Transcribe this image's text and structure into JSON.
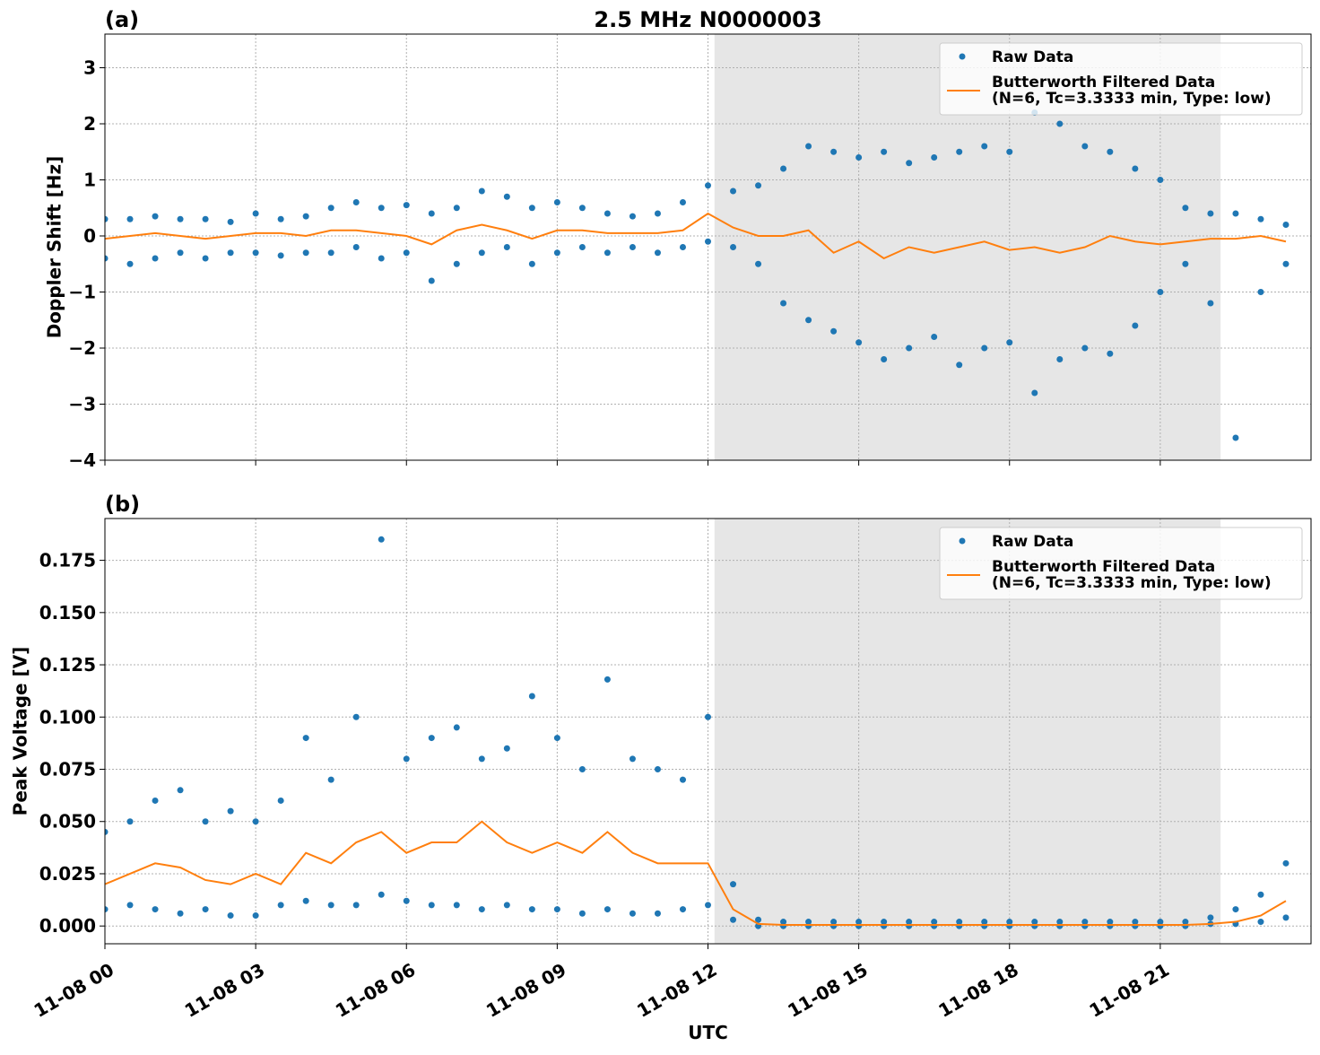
{
  "chart_data": [
    {
      "type": "line",
      "title": "2.5 MHz N0000003",
      "panel": "(a)",
      "ylabel": "Doppler Shift [Hz]",
      "xlim": [
        0,
        24
      ],
      "xticks": [
        0,
        3,
        6,
        9,
        12,
        15,
        18,
        21
      ],
      "ylim": [
        -4,
        3.6
      ],
      "yticks": [
        {
          "value": -4,
          "label": "−4"
        },
        {
          "value": -3,
          "label": "−3"
        },
        {
          "value": -2,
          "label": "−2"
        },
        {
          "value": -1,
          "label": "−1"
        },
        0,
        1,
        2,
        3
      ],
      "grid": true,
      "shade": [
        12.13,
        22.2
      ],
      "legend": "upper right",
      "series": [
        {
          "name": "Raw Data",
          "type": "scatter",
          "color": "#1f77b4",
          "x": [
            0,
            0,
            0.5,
            0.5,
            1,
            1,
            1.5,
            1.5,
            2,
            2,
            2.5,
            2.5,
            3,
            3,
            3.5,
            3.5,
            4,
            4,
            4.5,
            4.5,
            5,
            5,
            5.5,
            5.5,
            6,
            6,
            6.5,
            6.5,
            7,
            7,
            7.5,
            7.5,
            8,
            8,
            8.5,
            8.5,
            9,
            9,
            9.5,
            9.5,
            10,
            10,
            10.5,
            10.5,
            11,
            11,
            11.5,
            11.5,
            12,
            12,
            12.5,
            12.5,
            13,
            13,
            13.5,
            13.5,
            14,
            14,
            14.5,
            14.5,
            15,
            15,
            15.5,
            15.5,
            16,
            16,
            16.5,
            16.5,
            17,
            17,
            17.5,
            17.5,
            18,
            18,
            18.5,
            18.5,
            19,
            19,
            19.5,
            19.5,
            20,
            20,
            20.5,
            20.5,
            21,
            21,
            21.5,
            21.5,
            22,
            22,
            22.5,
            22.5,
            23,
            23,
            23.5,
            23.5
          ],
          "values": [
            0.3,
            -0.4,
            0.3,
            -0.5,
            0.35,
            -0.4,
            0.3,
            -0.3,
            0.3,
            -0.4,
            0.25,
            -0.3,
            0.4,
            -0.3,
            0.3,
            -0.35,
            0.35,
            -0.3,
            0.5,
            -0.3,
            0.6,
            -0.2,
            0.5,
            -0.4,
            0.55,
            -0.3,
            0.4,
            -0.8,
            0.5,
            -0.5,
            0.8,
            -0.3,
            0.7,
            -0.2,
            0.5,
            -0.5,
            0.6,
            -0.3,
            0.5,
            -0.2,
            0.4,
            -0.3,
            0.35,
            -0.2,
            0.4,
            -0.3,
            0.6,
            -0.2,
            0.9,
            -0.1,
            0.8,
            -0.2,
            0.9,
            -0.5,
            1.2,
            -1.2,
            1.6,
            -1.5,
            1.5,
            -1.7,
            1.4,
            -1.9,
            1.5,
            -2.2,
            1.3,
            -2.0,
            1.4,
            -1.8,
            1.5,
            -2.3,
            1.6,
            -2.0,
            1.5,
            -1.9,
            2.2,
            -2.8,
            2.0,
            -2.2,
            1.6,
            -2.0,
            1.5,
            -2.1,
            1.2,
            -1.6,
            1.0,
            -1.0,
            0.5,
            -0.5,
            0.4,
            -1.2,
            0.4,
            -3.6,
            0.3,
            -1.0,
            0.2,
            -0.5
          ]
        },
        {
          "name": "Butterworth Filtered Data\n(N=6, Tc=3.3333 min, Type: low)",
          "type": "line",
          "color": "#ff7f0e",
          "x": [
            0,
            0.5,
            1,
            1.5,
            2,
            2.5,
            3,
            3.5,
            4,
            4.5,
            5,
            5.5,
            6,
            6.5,
            7,
            7.5,
            8,
            8.5,
            9,
            9.5,
            10,
            10.5,
            11,
            11.5,
            12,
            12.5,
            13,
            13.5,
            14,
            14.5,
            15,
            15.5,
            16,
            16.5,
            17,
            17.5,
            18,
            18.5,
            19,
            19.5,
            20,
            20.5,
            21,
            21.5,
            22,
            22.5,
            23,
            23.5
          ],
          "values": [
            -0.05,
            0,
            0.05,
            0,
            -0.05,
            0,
            0.05,
            0.05,
            0,
            0.1,
            0.1,
            0.05,
            0,
            -0.15,
            0.1,
            0.2,
            0.1,
            -0.05,
            0.1,
            0.1,
            0.05,
            0.05,
            0.05,
            0.1,
            0.4,
            0.15,
            0.0,
            0.0,
            0.1,
            -0.3,
            -0.1,
            -0.4,
            -0.2,
            -0.3,
            -0.2,
            -0.1,
            -0.25,
            -0.2,
            -0.3,
            -0.2,
            0.0,
            -0.1,
            -0.15,
            -0.1,
            -0.05,
            -0.05,
            0,
            -0.1
          ]
        }
      ]
    },
    {
      "type": "line",
      "panel": "(b)",
      "ylabel": "Peak Voltage [V]",
      "xlabel": "UTC",
      "xlim": [
        0,
        24
      ],
      "xticks": [
        {
          "value": 0,
          "label": "11-08 00"
        },
        {
          "value": 3,
          "label": "11-08 03"
        },
        {
          "value": 6,
          "label": "11-08 06"
        },
        {
          "value": 9,
          "label": "11-08 09"
        },
        {
          "value": 12,
          "label": "11-08 12"
        },
        {
          "value": 15,
          "label": "11-08 15"
        },
        {
          "value": 18,
          "label": "11-08 18"
        },
        {
          "value": 21,
          "label": "11-08 21"
        }
      ],
      "ylim": [
        -0.0085,
        0.195
      ],
      "yticks": [
        {
          "value": 0,
          "label": "0.000"
        },
        {
          "value": 0.025,
          "label": "0.025"
        },
        {
          "value": 0.05,
          "label": "0.050"
        },
        {
          "value": 0.075,
          "label": "0.075"
        },
        {
          "value": 0.1,
          "label": "0.100"
        },
        {
          "value": 0.125,
          "label": "0.125"
        },
        {
          "value": 0.15,
          "label": "0.150"
        },
        {
          "value": 0.175,
          "label": "0.175"
        }
      ],
      "grid": true,
      "shade": [
        12.13,
        22.2
      ],
      "legend": "upper right",
      "series": [
        {
          "name": "Raw Data",
          "type": "scatter",
          "color": "#1f77b4",
          "x": [
            0,
            0,
            0.5,
            0.5,
            1,
            1,
            1.5,
            1.5,
            2,
            2,
            2.5,
            2.5,
            3,
            3,
            3.5,
            3.5,
            4,
            4,
            4.5,
            4.5,
            5,
            5,
            5.5,
            5.5,
            6,
            6,
            6.5,
            6.5,
            7,
            7,
            7.5,
            7.5,
            8,
            8,
            8.5,
            8.5,
            9,
            9,
            9.5,
            9.5,
            10,
            10,
            10.5,
            10.5,
            11,
            11,
            11.5,
            11.5,
            12,
            12,
            12.5,
            12.5,
            13,
            13,
            13.5,
            13.5,
            14,
            14,
            14.5,
            14.5,
            15,
            15,
            15.5,
            15.5,
            16,
            16,
            16.5,
            16.5,
            17,
            17,
            17.5,
            17.5,
            18,
            18,
            18.5,
            18.5,
            19,
            19,
            19.5,
            19.5,
            20,
            20,
            20.5,
            20.5,
            21,
            21,
            21.5,
            21.5,
            22,
            22,
            22.5,
            22.5,
            23,
            23,
            23.5,
            23.5
          ],
          "values": [
            0.045,
            0.008,
            0.05,
            0.01,
            0.06,
            0.008,
            0.065,
            0.006,
            0.05,
            0.008,
            0.055,
            0.005,
            0.05,
            0.005,
            0.06,
            0.01,
            0.09,
            0.012,
            0.07,
            0.01,
            0.1,
            0.01,
            0.185,
            0.015,
            0.08,
            0.012,
            0.09,
            0.01,
            0.095,
            0.01,
            0.08,
            0.008,
            0.085,
            0.01,
            0.11,
            0.008,
            0.09,
            0.008,
            0.075,
            0.006,
            0.118,
            0.008,
            0.08,
            0.006,
            0.075,
            0.006,
            0.07,
            0.008,
            0.1,
            0.01,
            0.02,
            0.003,
            0.003,
            0,
            0.002,
            0,
            0.002,
            0,
            0.002,
            0,
            0.002,
            0,
            0.002,
            0,
            0.002,
            0,
            0.002,
            0,
            0.002,
            0,
            0.002,
            0,
            0.002,
            0,
            0.002,
            0,
            0.002,
            0,
            0.002,
            0,
            0.002,
            0,
            0.002,
            0,
            0.002,
            0,
            0.002,
            0,
            0.004,
            0.001,
            0.008,
            0.001,
            0.015,
            0.002,
            0.03,
            0.004
          ]
        },
        {
          "name": "Butterworth Filtered Data\n(N=6, Tc=3.3333 min, Type: low)",
          "type": "line",
          "color": "#ff7f0e",
          "x": [
            0,
            0.5,
            1,
            1.5,
            2,
            2.5,
            3,
            3.5,
            4,
            4.5,
            5,
            5.5,
            6,
            6.5,
            7,
            7.5,
            8,
            8.5,
            9,
            9.5,
            10,
            10.5,
            11,
            11.5,
            12,
            12.5,
            13,
            13.5,
            14,
            14.5,
            15,
            15.5,
            16,
            16.5,
            17,
            17.5,
            18,
            18.5,
            19,
            19.5,
            20,
            20.5,
            21,
            21.5,
            22,
            22.5,
            23,
            23.5
          ],
          "values": [
            0.02,
            0.025,
            0.03,
            0.028,
            0.022,
            0.02,
            0.025,
            0.02,
            0.035,
            0.03,
            0.04,
            0.045,
            0.035,
            0.04,
            0.04,
            0.05,
            0.04,
            0.035,
            0.04,
            0.035,
            0.045,
            0.035,
            0.03,
            0.03,
            0.03,
            0.008,
            0.001,
            0.0005,
            0.0005,
            0.0005,
            0.0005,
            0.0005,
            0.0005,
            0.0005,
            0.0005,
            0.0005,
            0.0005,
            0.0005,
            0.0005,
            0.0005,
            0.0005,
            0.0005,
            0.0005,
            0.0005,
            0.001,
            0.002,
            0.005,
            0.012
          ]
        }
      ]
    }
  ]
}
